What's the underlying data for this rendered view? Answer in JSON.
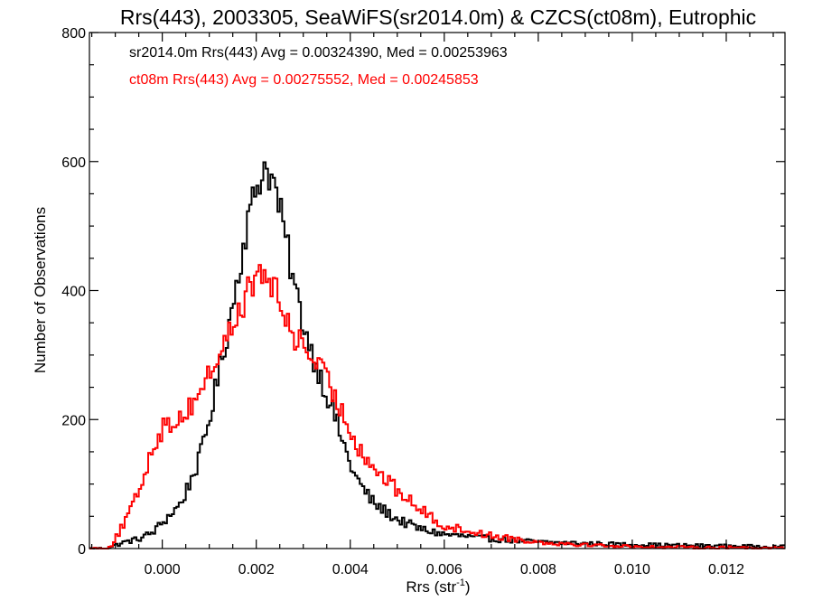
{
  "chart_data": {
    "type": "histogram-step",
    "title": "Rrs(443), 2003305, SeaWiFS(sr2014.0m) & CZCS(ct08m), Eutrophic",
    "xlabel": "Rrs (str",
    "xlabel_sup": "-1",
    "xlabel_close": ")",
    "ylabel": "Number of Observations",
    "xlim": [
      -0.00155,
      0.01325
    ],
    "ylim": [
      0,
      800
    ],
    "xticks": [
      0.0,
      0.002,
      0.004,
      0.006,
      0.008,
      0.01,
      0.012
    ],
    "xtick_labels": [
      "0.000",
      "0.002",
      "0.004",
      "0.006",
      "0.008",
      "0.010",
      "0.012"
    ],
    "yticks": [
      0,
      200,
      400,
      600,
      800
    ],
    "ytick_labels": [
      "0",
      "200",
      "400",
      "600",
      "800"
    ],
    "bin_width": 5e-05,
    "series": [
      {
        "name": "sr2014.0m",
        "stats_label": "sr2014.0m Rrs(443) Avg = 0.00324390, Med = 0.00253963",
        "color": "#000000",
        "anchors": [
          [
            -0.0012,
            0
          ],
          [
            -0.001,
            5
          ],
          [
            -0.0008,
            10
          ],
          [
            -0.0005,
            15
          ],
          [
            -0.0002,
            25
          ],
          [
            0.0,
            40
          ],
          [
            0.0004,
            70
          ],
          [
            0.0008,
            140
          ],
          [
            0.001,
            200
          ],
          [
            0.0012,
            270
          ],
          [
            0.0014,
            340
          ],
          [
            0.0016,
            420
          ],
          [
            0.0018,
            500
          ],
          [
            0.002,
            560
          ],
          [
            0.0022,
            595
          ],
          [
            0.0024,
            560
          ],
          [
            0.0026,
            490
          ],
          [
            0.0028,
            410
          ],
          [
            0.003,
            350
          ],
          [
            0.0032,
            300
          ],
          [
            0.0034,
            260
          ],
          [
            0.0036,
            220
          ],
          [
            0.0038,
            175
          ],
          [
            0.004,
            130
          ],
          [
            0.0042,
            100
          ],
          [
            0.0045,
            70
          ],
          [
            0.005,
            45
          ],
          [
            0.0055,
            30
          ],
          [
            0.006,
            22
          ],
          [
            0.007,
            15
          ],
          [
            0.008,
            10
          ],
          [
            0.009,
            8
          ],
          [
            0.01,
            6
          ],
          [
            0.012,
            4
          ],
          [
            0.0132,
            3
          ]
        ]
      },
      {
        "name": "ct08m",
        "stats_label": "ct08m Rrs(443) Avg = 0.00275552, Med = 0.00245853",
        "color": "#ff0000",
        "anchors": [
          [
            -0.0013,
            0
          ],
          [
            -0.0011,
            3
          ],
          [
            -0.001,
            15
          ],
          [
            -0.0008,
            40
          ],
          [
            -0.0006,
            70
          ],
          [
            -0.0004,
            110
          ],
          [
            -0.0002,
            160
          ],
          [
            0.0,
            185
          ],
          [
            0.0002,
            195
          ],
          [
            0.0004,
            205
          ],
          [
            0.0006,
            220
          ],
          [
            0.0008,
            245
          ],
          [
            0.001,
            270
          ],
          [
            0.0012,
            300
          ],
          [
            0.0014,
            330
          ],
          [
            0.0016,
            360
          ],
          [
            0.0018,
            395
          ],
          [
            0.002,
            420
          ],
          [
            0.0022,
            425
          ],
          [
            0.0024,
            400
          ],
          [
            0.0026,
            360
          ],
          [
            0.0028,
            330
          ],
          [
            0.003,
            315
          ],
          [
            0.0032,
            295
          ],
          [
            0.0034,
            275
          ],
          [
            0.0036,
            245
          ],
          [
            0.0038,
            215
          ],
          [
            0.004,
            185
          ],
          [
            0.0042,
            155
          ],
          [
            0.0045,
            125
          ],
          [
            0.005,
            90
          ],
          [
            0.0055,
            60
          ],
          [
            0.006,
            35
          ],
          [
            0.007,
            20
          ],
          [
            0.008,
            10
          ],
          [
            0.009,
            6
          ],
          [
            0.01,
            3
          ],
          [
            0.011,
            2
          ],
          [
            0.0132,
            1
          ]
        ]
      }
    ],
    "grid": false,
    "legend": "top-left stats text"
  }
}
